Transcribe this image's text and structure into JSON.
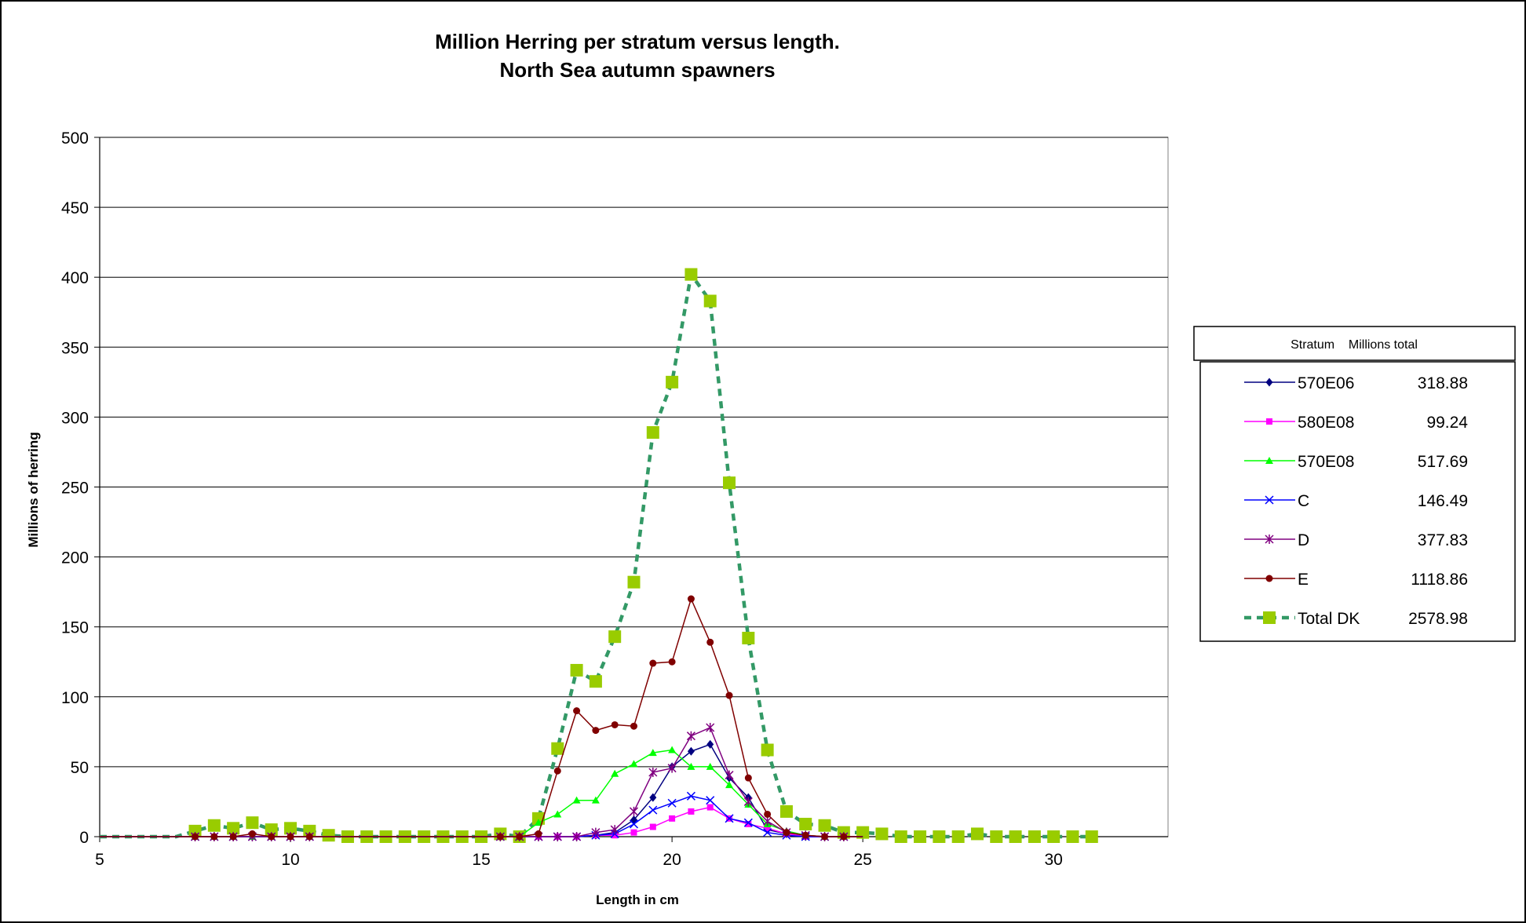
{
  "chart_data": {
    "type": "line",
    "title_lines": [
      "Million Herring per stratum versus length.",
      "North Sea autumn spawners"
    ],
    "xlabel": "Length in cm",
    "ylabel": "Millions of herring",
    "xlim": [
      5,
      33.0
    ],
    "ylim": [
      0,
      500
    ],
    "xticks": [
      5,
      10,
      15,
      20,
      25,
      30
    ],
    "yticks": [
      0,
      50,
      100,
      150,
      200,
      250,
      300,
      350,
      400,
      450,
      500
    ],
    "grid": "horizontal",
    "legend_position": "right",
    "legend_header": "Stratum    Millions total",
    "series": [
      {
        "name": "570E06",
        "total": "318.88",
        "color": "#000080",
        "marker": "diamond",
        "line": "solid",
        "x": [
          5,
          5.5,
          6,
          6.5,
          7,
          7.5,
          8,
          8.5,
          9,
          9.5,
          10,
          10.5,
          11,
          11.5,
          12,
          12.5,
          13,
          13.5,
          14,
          14.5,
          15,
          15.5,
          16,
          16.5,
          17,
          17.5,
          18,
          18.5,
          19,
          19.5,
          20,
          20.5,
          21,
          21.5,
          22,
          22.5,
          23,
          23.5,
          24,
          24.5,
          25
        ],
        "y": [
          0,
          0,
          0,
          0,
          0,
          0,
          0,
          0,
          0,
          0,
          0,
          0,
          0,
          0,
          0,
          0,
          0,
          0,
          0,
          0,
          0,
          0,
          0,
          0,
          0,
          0,
          1,
          3,
          12,
          28,
          50,
          61,
          66,
          42,
          28,
          5,
          2,
          0,
          0,
          0,
          0
        ]
      },
      {
        "name": "580E08",
        "total": "99.24",
        "color": "#FF00FF",
        "marker": "square",
        "line": "solid",
        "x": [
          5,
          5.5,
          6,
          6.5,
          7,
          7.5,
          8,
          8.5,
          9,
          9.5,
          10,
          10.5,
          11,
          11.5,
          12,
          12.5,
          13,
          13.5,
          14,
          14.5,
          15,
          15.5,
          16,
          16.5,
          17,
          17.5,
          18,
          18.5,
          19,
          19.5,
          20,
          20.5,
          21,
          21.5,
          22,
          22.5,
          23,
          23.5,
          24,
          24.5,
          25
        ],
        "y": [
          0,
          0,
          0,
          0,
          0,
          0,
          0,
          0,
          0,
          0,
          0,
          0,
          0,
          0,
          0,
          0,
          0,
          0,
          0,
          0,
          0,
          0,
          0,
          0,
          0,
          0,
          1,
          1,
          3,
          7,
          13,
          18,
          21,
          13,
          9,
          6,
          2,
          0,
          0,
          0,
          0
        ]
      },
      {
        "name": "570E08",
        "total": "517.69",
        "color": "#00FF00",
        "marker": "triangle",
        "line": "solid",
        "x": [
          5,
          5.5,
          6,
          6.5,
          7,
          7.5,
          8,
          8.5,
          9,
          9.5,
          10,
          10.5,
          11,
          11.5,
          12,
          12.5,
          13,
          13.5,
          14,
          14.5,
          15,
          15.5,
          16,
          16.5,
          17,
          17.5,
          18,
          18.5,
          19,
          19.5,
          20,
          20.5,
          21,
          21.5,
          22,
          22.5,
          23,
          23.5,
          24,
          24.5,
          25
        ],
        "y": [
          0,
          0,
          0,
          0,
          0,
          0,
          0,
          0,
          0,
          0,
          0,
          0,
          0,
          0,
          0,
          0,
          0,
          0,
          0,
          0,
          0,
          0,
          0,
          10,
          16,
          26,
          26,
          45,
          52,
          60,
          62,
          50,
          50,
          37,
          23,
          9,
          4,
          1,
          0,
          0,
          0
        ]
      },
      {
        "name": "C",
        "total": "146.49",
        "color": "#0000FF",
        "marker": "x",
        "line": "solid",
        "x": [
          5,
          5.5,
          6,
          6.5,
          7,
          7.5,
          8,
          8.5,
          9,
          9.5,
          10,
          10.5,
          11,
          11.5,
          12,
          12.5,
          13,
          13.5,
          14,
          14.5,
          15,
          15.5,
          16,
          16.5,
          17,
          17.5,
          18,
          18.5,
          19,
          19.5,
          20,
          20.5,
          21,
          21.5,
          22,
          22.5,
          23,
          23.5,
          24,
          24.5,
          25
        ],
        "y": [
          0,
          0,
          0,
          0,
          0,
          0,
          0,
          0,
          0,
          0,
          0,
          0,
          0,
          0,
          0,
          0,
          0,
          0,
          0,
          0,
          0,
          0,
          0,
          0,
          0,
          0,
          1,
          2,
          9,
          19,
          24,
          29,
          26,
          13,
          10,
          3,
          1,
          0,
          0,
          0,
          0
        ]
      },
      {
        "name": "D",
        "total": "377.83",
        "color": "#800080",
        "marker": "star",
        "line": "solid",
        "x": [
          5,
          5.5,
          6,
          6.5,
          7,
          7.5,
          8,
          8.5,
          9,
          9.5,
          10,
          10.5,
          11,
          11.5,
          12,
          12.5,
          13,
          13.5,
          14,
          14.5,
          15,
          15.5,
          16,
          16.5,
          17,
          17.5,
          18,
          18.5,
          19,
          19.5,
          20,
          20.5,
          21,
          21.5,
          22,
          22.5,
          23,
          23.5,
          24,
          24.5,
          25
        ],
        "y": [
          0,
          0,
          0,
          0,
          0,
          0,
          0,
          0,
          0,
          0,
          0,
          0,
          0,
          0,
          0,
          0,
          0,
          0,
          0,
          0,
          0,
          0,
          0,
          0,
          0,
          0,
          3,
          5,
          18,
          46,
          49,
          72,
          78,
          44,
          25,
          11,
          3,
          1,
          0,
          0,
          0
        ]
      },
      {
        "name": "E",
        "total": "1118.86",
        "color": "#800000",
        "marker": "circle",
        "line": "solid",
        "x": [
          5,
          5.5,
          6,
          6.5,
          7,
          7.5,
          8,
          8.5,
          9,
          9.5,
          10,
          10.5,
          11,
          11.5,
          12,
          12.5,
          13,
          13.5,
          14,
          14.5,
          15,
          15.5,
          16,
          16.5,
          17,
          17.5,
          18,
          18.5,
          19,
          19.5,
          20,
          20.5,
          21,
          21.5,
          22,
          22.5,
          23,
          23.5,
          24,
          24.5,
          25
        ],
        "y": [
          0,
          0,
          0,
          0,
          0,
          0,
          0,
          0,
          2,
          0,
          0,
          0,
          0,
          0,
          0,
          0,
          0,
          0,
          0,
          0,
          0,
          0,
          0,
          2,
          47,
          90,
          76,
          80,
          79,
          124,
          125,
          170,
          139,
          101,
          42,
          16,
          3,
          1,
          0,
          0,
          0
        ]
      },
      {
        "name": "Total DK",
        "total": "2578.98",
        "color": "#99CC00",
        "line_color": "#339966",
        "marker": "bigsquare",
        "line": "dashed",
        "x": [
          5,
          5.5,
          6,
          6.5,
          7,
          7.5,
          8,
          8.5,
          9,
          9.5,
          10,
          10.5,
          11,
          11.5,
          12,
          12.5,
          13,
          13.5,
          14,
          14.5,
          15,
          15.5,
          16,
          16.5,
          17,
          17.5,
          18,
          18.5,
          19,
          19.5,
          20,
          20.5,
          21,
          21.5,
          22,
          22.5,
          23,
          23.5,
          24,
          24.5,
          25,
          25.5,
          26,
          26.5,
          27,
          27.5,
          28,
          28.5,
          29,
          29.5,
          30,
          30.5,
          31
        ],
        "y": [
          0,
          0,
          0,
          0,
          0,
          4,
          8,
          6,
          10,
          5,
          6,
          4,
          1,
          0,
          0,
          0,
          0,
          0,
          0,
          0,
          0,
          2,
          0,
          13,
          63,
          119,
          111,
          143,
          182,
          289,
          325,
          402,
          383,
          253,
          142,
          62,
          18,
          9,
          8,
          3,
          3,
          2,
          0,
          0,
          0,
          0,
          2,
          0,
          0,
          0,
          0,
          0,
          0
        ]
      }
    ]
  }
}
